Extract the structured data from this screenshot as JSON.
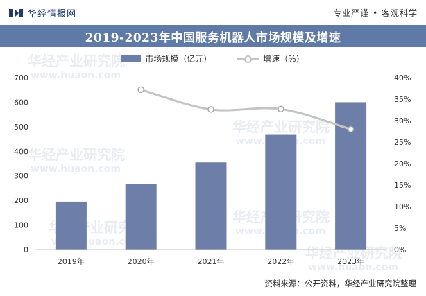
{
  "header": {
    "brand": "华经情报网",
    "slogan": "专业严谨 • 客观科学"
  },
  "chart_title": "2019-2023年中国服务机器人市场规模及增速",
  "legend": {
    "bar_label": "市场规模（亿元）",
    "line_label": "增速（%）"
  },
  "source": "资料来源：公开资料，华经产业研究院整理",
  "watermark": {
    "text": "华经产业研究院",
    "url": "www.huaon.com"
  },
  "colors": {
    "title_bar": "#5f7aa6",
    "bar": "#6d7fa8",
    "line": "#c4c4c4",
    "brand": "#1f3b6e"
  },
  "chart_data": {
    "type": "bar",
    "title": "2019-2023年中国服务机器人市场规模及增速",
    "categories": [
      "2019年",
      "2020年",
      "2021年",
      "2022年",
      "2023年"
    ],
    "series": [
      {
        "name": "市场规模（亿元）",
        "type": "bar",
        "axis": "left",
        "values": [
          195,
          268,
          355,
          467,
          600
        ]
      },
      {
        "name": "增速（%）",
        "type": "line",
        "axis": "right",
        "values": [
          null,
          37.2,
          32.6,
          32.7,
          28.0
        ]
      }
    ],
    "y_left": {
      "ylim": [
        0,
        700
      ],
      "ticks": [
        0,
        100,
        200,
        300,
        400,
        500,
        600,
        700
      ]
    },
    "y_right": {
      "ylim": [
        0,
        40
      ],
      "ticks": [
        "0%",
        "5%",
        "10%",
        "15%",
        "20%",
        "25%",
        "30%",
        "35%",
        "40%"
      ]
    },
    "grid": false,
    "legend_position": "top-center"
  }
}
